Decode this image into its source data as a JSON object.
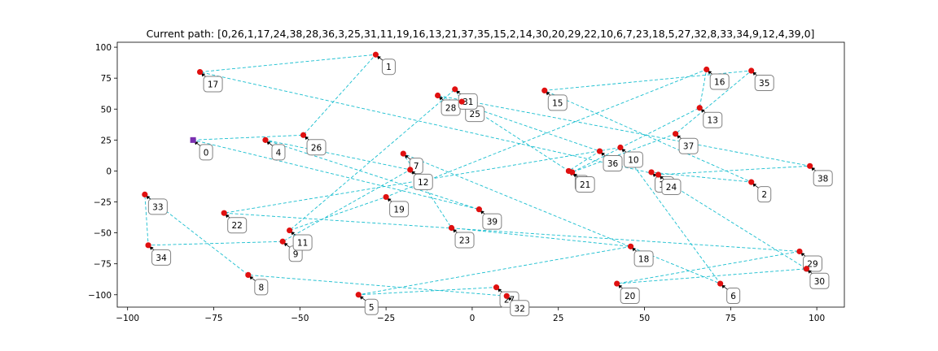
{
  "chart_data": {
    "type": "scatter",
    "title": "Current path: [0,26,1,17,24,38,28,36,3,25,31,11,19,16,13,21,37,35,15,2,14,30,20,29,22,10,6,7,23,18,5,27,32,8,33,34,9,12,4,39,0]",
    "xlabel": "",
    "ylabel": "",
    "xlim": [
      -103,
      108
    ],
    "ylim": [
      -110,
      104
    ],
    "xticks": [
      -100,
      -75,
      -50,
      -25,
      0,
      25,
      50,
      75,
      100
    ],
    "yticks": [
      -100,
      -75,
      -50,
      -25,
      0,
      25,
      50,
      75,
      100
    ],
    "grid": false,
    "colors": {
      "node": "#e01010",
      "start_node": "#7a2fb0",
      "path": "#17becf"
    },
    "points": [
      {
        "id": "0",
        "x": -81,
        "y": 25
      },
      {
        "id": "1",
        "x": -28,
        "y": 94
      },
      {
        "id": "2",
        "x": 81,
        "y": -9
      },
      {
        "id": "3",
        "x": 28,
        "y": 0
      },
      {
        "id": "4",
        "x": -60,
        "y": 25
      },
      {
        "id": "5",
        "x": -33,
        "y": -100
      },
      {
        "id": "6",
        "x": 72,
        "y": -91
      },
      {
        "id": "7",
        "x": -20,
        "y": 14
      },
      {
        "id": "8",
        "x": -65,
        "y": -84
      },
      {
        "id": "9",
        "x": -55,
        "y": -57
      },
      {
        "id": "10",
        "x": 43,
        "y": 19
      },
      {
        "id": "11",
        "x": -53,
        "y": -48
      },
      {
        "id": "12",
        "x": -18,
        "y": 1
      },
      {
        "id": "13",
        "x": 66,
        "y": 51
      },
      {
        "id": "14",
        "x": 52,
        "y": -1
      },
      {
        "id": "15",
        "x": 21,
        "y": 65
      },
      {
        "id": "16",
        "x": 68,
        "y": 82
      },
      {
        "id": "17",
        "x": -79,
        "y": 80
      },
      {
        "id": "18",
        "x": 46,
        "y": -61
      },
      {
        "id": "19",
        "x": -25,
        "y": -21
      },
      {
        "id": "20",
        "x": 42,
        "y": -91
      },
      {
        "id": "21",
        "x": 29,
        "y": -1
      },
      {
        "id": "22",
        "x": -72,
        "y": -34
      },
      {
        "id": "23",
        "x": -6,
        "y": -46
      },
      {
        "id": "24",
        "x": 54,
        "y": -3
      },
      {
        "id": "25",
        "x": -3,
        "y": 56
      },
      {
        "id": "26",
        "x": -49,
        "y": 29
      },
      {
        "id": "27",
        "x": 7,
        "y": -94
      },
      {
        "id": "28",
        "x": -10,
        "y": 61
      },
      {
        "id": "29",
        "x": 95,
        "y": -65
      },
      {
        "id": "30",
        "x": 97,
        "y": -79
      },
      {
        "id": "31",
        "x": -5,
        "y": 66
      },
      {
        "id": "32",
        "x": 10,
        "y": -101
      },
      {
        "id": "33",
        "x": -95,
        "y": -19
      },
      {
        "id": "34",
        "x": -94,
        "y": -60
      },
      {
        "id": "35",
        "x": 81,
        "y": 81
      },
      {
        "id": "36",
        "x": 37,
        "y": 16
      },
      {
        "id": "37",
        "x": 59,
        "y": 30
      },
      {
        "id": "38",
        "x": 98,
        "y": 4
      },
      {
        "id": "39",
        "x": 2,
        "y": -31
      }
    ],
    "path_order": [
      0,
      26,
      1,
      17,
      24,
      38,
      28,
      36,
      3,
      25,
      31,
      11,
      19,
      16,
      13,
      21,
      37,
      35,
      15,
      2,
      14,
      30,
      20,
      29,
      22,
      10,
      6,
      7,
      23,
      18,
      5,
      27,
      32,
      8,
      33,
      34,
      9,
      12,
      4,
      39,
      0
    ]
  }
}
